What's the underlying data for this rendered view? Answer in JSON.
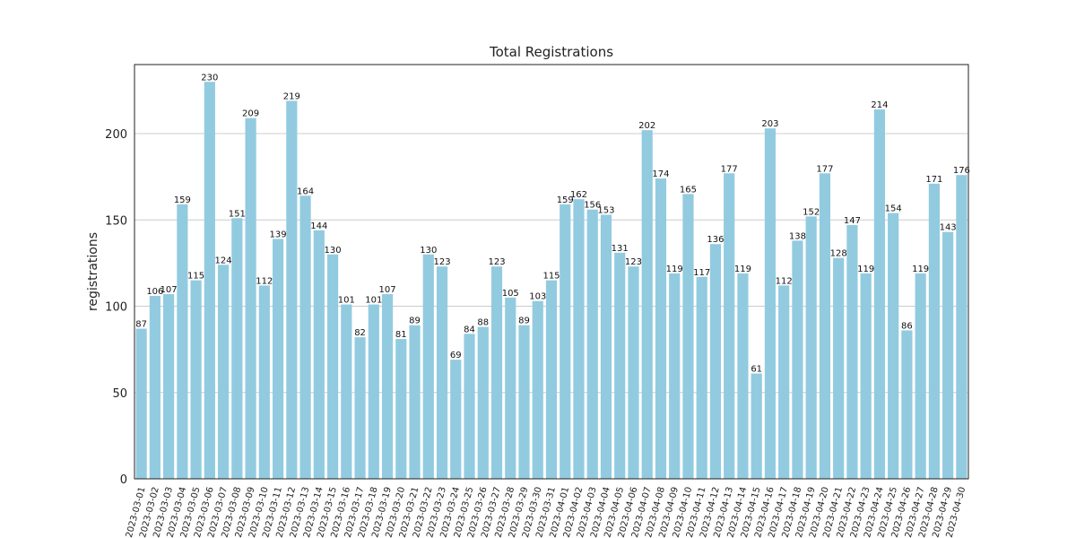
{
  "chart_data": {
    "type": "bar",
    "title": "Total Registrations",
    "xlabel": "",
    "ylabel": "registrations",
    "ylim": [
      0,
      240
    ],
    "yticks": [
      0,
      50,
      100,
      150,
      200
    ],
    "grid": "horizontal",
    "bar_color": "#92cbe0",
    "categories": [
      "2023-03-01",
      "2023-03-02",
      "2023-03-03",
      "2023-03-04",
      "2023-03-05",
      "2023-03-06",
      "2023-03-07",
      "2023-03-08",
      "2023-03-09",
      "2023-03-10",
      "2023-03-11",
      "2023-03-12",
      "2023-03-13",
      "2023-03-14",
      "2023-03-15",
      "2023-03-16",
      "2023-03-17",
      "2023-03-18",
      "2023-03-19",
      "2023-03-20",
      "2023-03-21",
      "2023-03-22",
      "2023-03-23",
      "2023-03-24",
      "2023-03-25",
      "2023-03-26",
      "2023-03-27",
      "2023-03-28",
      "2023-03-29",
      "2023-03-30",
      "2023-03-31",
      "2023-04-01",
      "2023-04-02",
      "2023-04-03",
      "2023-04-04",
      "2023-04-05",
      "2023-04-06",
      "2023-04-07",
      "2023-04-08",
      "2023-04-09",
      "2023-04-10",
      "2023-04-11",
      "2023-04-12",
      "2023-04-13",
      "2023-04-14",
      "2023-04-15",
      "2023-04-16",
      "2023-04-17",
      "2023-04-18",
      "2023-04-19",
      "2023-04-20",
      "2023-04-21",
      "2023-04-22",
      "2023-04-23",
      "2023-04-24",
      "2023-04-25",
      "2023-04-26",
      "2023-04-27",
      "2023-04-28",
      "2023-04-29",
      "2023-04-30"
    ],
    "values": [
      87,
      106,
      107,
      159,
      115,
      230,
      124,
      151,
      209,
      112,
      139,
      219,
      164,
      144,
      130,
      101,
      82,
      101,
      107,
      81,
      89,
      130,
      123,
      69,
      84,
      88,
      123,
      105,
      89,
      103,
      115,
      159,
      162,
      156,
      153,
      131,
      123,
      202,
      174,
      119,
      165,
      117,
      136,
      177,
      119,
      61,
      203,
      112,
      138,
      152,
      177,
      128,
      147,
      119,
      214,
      154,
      86,
      119,
      171,
      143,
      176
    ]
  }
}
